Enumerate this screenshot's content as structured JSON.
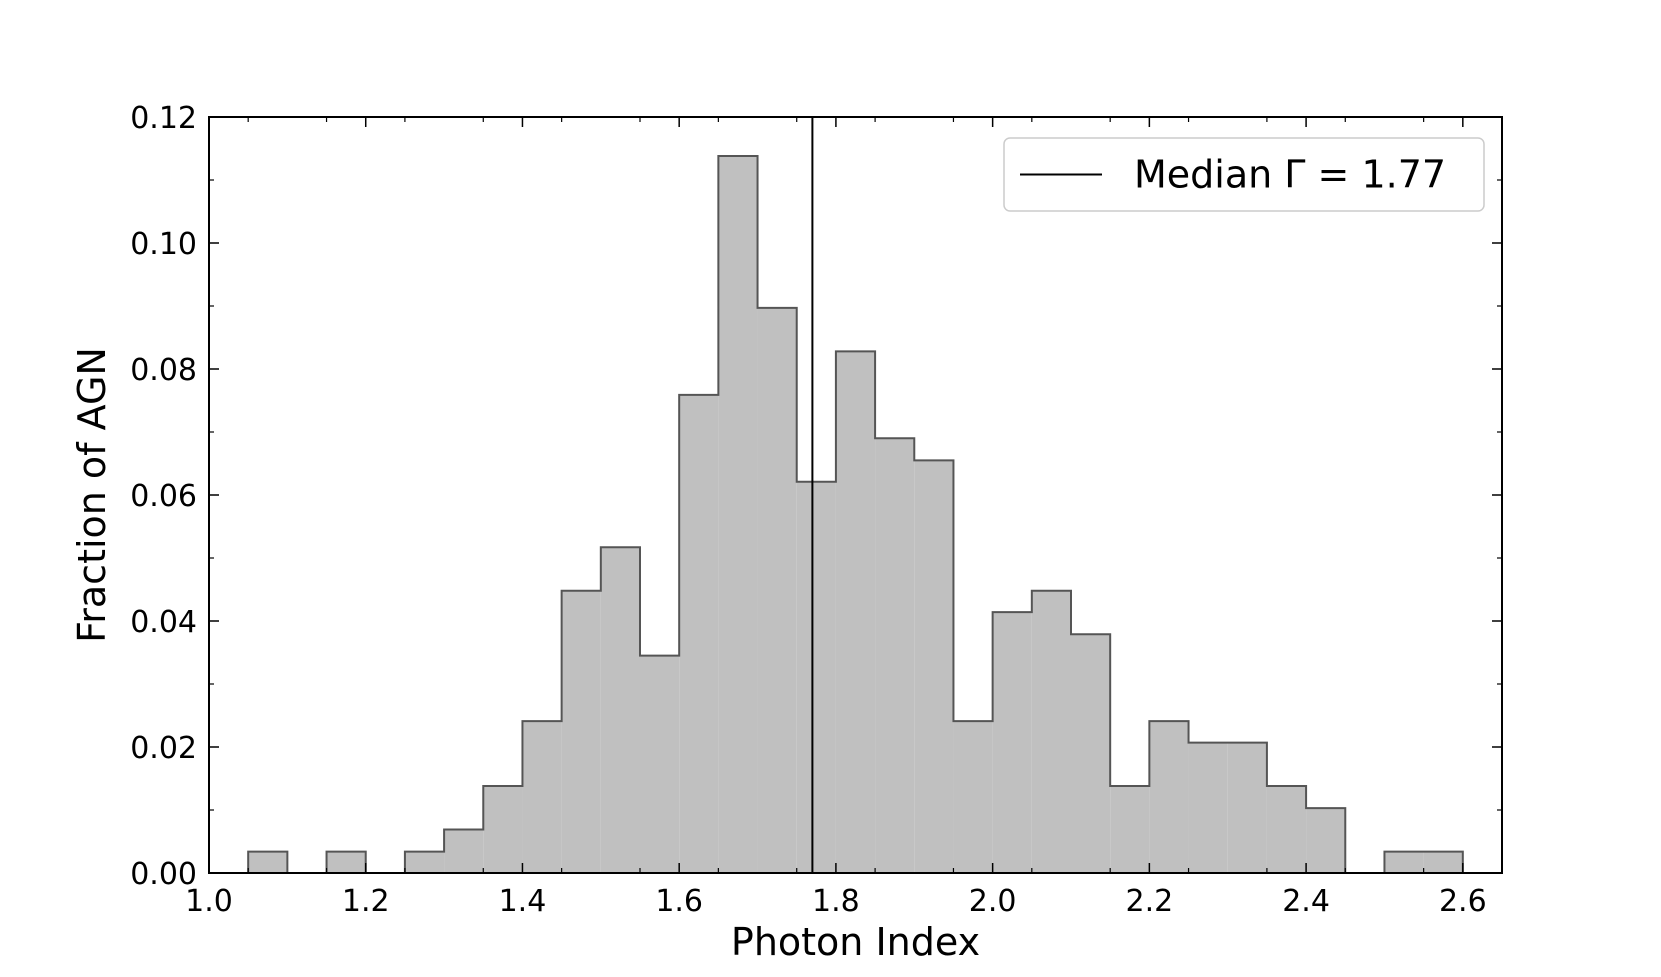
{
  "chart_data": {
    "type": "histogram",
    "xlabel": "Photon Index",
    "ylabel": "Fraction of AGN",
    "xlim": [
      1.0,
      2.65
    ],
    "ylim": [
      0.0,
      0.12
    ],
    "xticks": [
      "1.0",
      "1.2",
      "1.4",
      "1.6",
      "1.8",
      "2.0",
      "2.2",
      "2.4",
      "2.6"
    ],
    "yticks": [
      "0.00",
      "0.02",
      "0.04",
      "0.06",
      "0.08",
      "0.10",
      "0.12"
    ],
    "bin_width": 0.05,
    "bins": [
      {
        "x0": 1.05,
        "x1": 1.1,
        "value": 0.0034
      },
      {
        "x0": 1.1,
        "x1": 1.15,
        "value": 0.0
      },
      {
        "x0": 1.15,
        "x1": 1.2,
        "value": 0.0034
      },
      {
        "x0": 1.2,
        "x1": 1.25,
        "value": 0.0
      },
      {
        "x0": 1.25,
        "x1": 1.3,
        "value": 0.0034
      },
      {
        "x0": 1.3,
        "x1": 1.35,
        "value": 0.0069
      },
      {
        "x0": 1.35,
        "x1": 1.4,
        "value": 0.0138
      },
      {
        "x0": 1.4,
        "x1": 1.45,
        "value": 0.0241
      },
      {
        "x0": 1.45,
        "x1": 1.5,
        "value": 0.0448
      },
      {
        "x0": 1.5,
        "x1": 1.55,
        "value": 0.0517
      },
      {
        "x0": 1.55,
        "x1": 1.6,
        "value": 0.0345
      },
      {
        "x0": 1.6,
        "x1": 1.65,
        "value": 0.0759
      },
      {
        "x0": 1.65,
        "x1": 1.7,
        "value": 0.1138
      },
      {
        "x0": 1.7,
        "x1": 1.75,
        "value": 0.0897
      },
      {
        "x0": 1.75,
        "x1": 1.8,
        "value": 0.0621
      },
      {
        "x0": 1.8,
        "x1": 1.85,
        "value": 0.0828
      },
      {
        "x0": 1.85,
        "x1": 1.9,
        "value": 0.069
      },
      {
        "x0": 1.9,
        "x1": 1.95,
        "value": 0.0655
      },
      {
        "x0": 1.95,
        "x1": 2.0,
        "value": 0.0241
      },
      {
        "x0": 2.0,
        "x1": 2.05,
        "value": 0.0414
      },
      {
        "x0": 2.05,
        "x1": 2.1,
        "value": 0.0448
      },
      {
        "x0": 2.1,
        "x1": 2.15,
        "value": 0.0379
      },
      {
        "x0": 2.15,
        "x1": 2.2,
        "value": 0.0138
      },
      {
        "x0": 2.2,
        "x1": 2.25,
        "value": 0.0241
      },
      {
        "x0": 2.25,
        "x1": 2.3,
        "value": 0.0207
      },
      {
        "x0": 2.3,
        "x1": 2.35,
        "value": 0.0207
      },
      {
        "x0": 2.35,
        "x1": 2.4,
        "value": 0.0138
      },
      {
        "x0": 2.4,
        "x1": 2.45,
        "value": 0.0103
      },
      {
        "x0": 2.45,
        "x1": 2.5,
        "value": 0.0
      },
      {
        "x0": 2.5,
        "x1": 2.55,
        "value": 0.0034
      },
      {
        "x0": 2.55,
        "x1": 2.6,
        "value": 0.0034
      }
    ],
    "median_line": {
      "x": 1.77,
      "label": "Median Γ = 1.77",
      "color": "#000000"
    },
    "legend_position": "top-right",
    "grid": false,
    "bar_fill": "#c0c0c0",
    "bar_edge": "#555555"
  }
}
